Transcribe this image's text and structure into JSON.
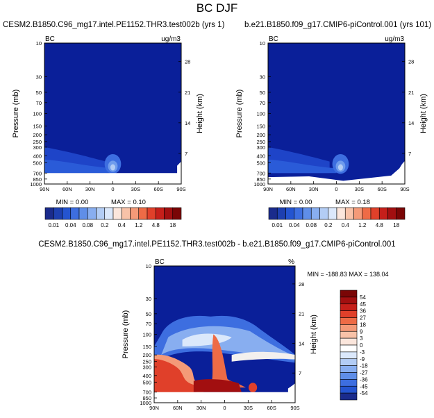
{
  "figure_title": "BC DJF",
  "chart_data": [
    {
      "type": "heatmap",
      "title": "CESM2.B1850.C96_mg17.intel.PE1152.THR3.test002b (yrs 1)",
      "left_label": "BC",
      "units": "ug/m3",
      "ylabel": "Pressure (mb)",
      "ylabel_right": "Height (km)",
      "x_ticks": [
        "90N",
        "60N",
        "30N",
        "0",
        "30S",
        "60S",
        "90S"
      ],
      "y_ticks": [
        "10",
        "30",
        "50",
        "70",
        "100",
        "150",
        "200",
        "250",
        "300",
        "400",
        "500",
        "700",
        "850",
        "1000"
      ],
      "y_right_ticks": [
        "28",
        "21",
        "14",
        "7"
      ],
      "min_label": "MIN =   0.00",
      "max_label": "MAX =   0.10",
      "min": 0.0,
      "max": 0.1
    },
    {
      "type": "heatmap",
      "title": "b.e21.B1850.f09_g17.CMIP6-piControl.001 (yrs 101)",
      "left_label": "BC",
      "units": "ug/m3",
      "ylabel": "Pressure (mb)",
      "ylabel_right": "Height (km)",
      "x_ticks": [
        "90N",
        "60N",
        "30N",
        "0",
        "30S",
        "60S",
        "90S"
      ],
      "y_ticks": [
        "10",
        "30",
        "50",
        "70",
        "100",
        "150",
        "200",
        "250",
        "300",
        "400",
        "500",
        "700",
        "850",
        "1000"
      ],
      "y_right_ticks": [
        "28",
        "21",
        "14",
        "7"
      ],
      "min_label": "MIN =   0.00",
      "max_label": "MAX =   0.18",
      "min": 0.0,
      "max": 0.18
    },
    {
      "type": "heatmap",
      "title": "CESM2.B1850.C96_mg17.intel.PE1152.THR3.test002b - b.e21.B1850.f09_g17.CMIP6-piControl.001",
      "left_label": "BC",
      "units": "%",
      "ylabel": "Pressure (mb)",
      "ylabel_right": "Height (km)",
      "x_ticks": [
        "90N",
        "60N",
        "30N",
        "0",
        "30S",
        "60S",
        "90S"
      ],
      "y_ticks": [
        "10",
        "30",
        "50",
        "70",
        "100",
        "150",
        "200",
        "250",
        "300",
        "400",
        "500",
        "700",
        "850",
        "1000"
      ],
      "y_right_ticks": [
        "28",
        "21",
        "14",
        "7"
      ],
      "minmax_label": "MIN = -188.83  MAX = 138.04",
      "min": -188.83,
      "max": 138.04
    }
  ],
  "colorbar_abs": {
    "labels": [
      "0.01",
      "0.04",
      "0.08",
      "0.2",
      "0.4",
      "1.2",
      "4.8",
      "18"
    ],
    "colors": [
      "#1a2b8c",
      "#1d3fb0",
      "#2454d0",
      "#3d6ee0",
      "#5f8ee8",
      "#88aef0",
      "#b3cdf5",
      "#dbe8fb",
      "#fbe6dc",
      "#f8c2a8",
      "#f49a78",
      "#ee6b46",
      "#e0402a",
      "#c51f1a",
      "#a20f10",
      "#7a0606"
    ]
  },
  "colorbar_diff": {
    "labels": [
      "54",
      "45",
      "36",
      "27",
      "18",
      "9",
      "3",
      "0",
      "-3",
      "-9",
      "-18",
      "-27",
      "-36",
      "-45",
      "-54"
    ],
    "colors": [
      "#7a0606",
      "#a20f10",
      "#c51f1a",
      "#e0402a",
      "#ee6b46",
      "#f49a78",
      "#f8c2a8",
      "#fbe6dc",
      "#ffffff",
      "#dbe8fb",
      "#b3cdf5",
      "#88aef0",
      "#5f8ee8",
      "#3d6ee0",
      "#2454d0",
      "#1a2b8c"
    ]
  },
  "colors": {
    "background_blue": "#0a1f99",
    "deep_blue": "#1a2b8c"
  }
}
